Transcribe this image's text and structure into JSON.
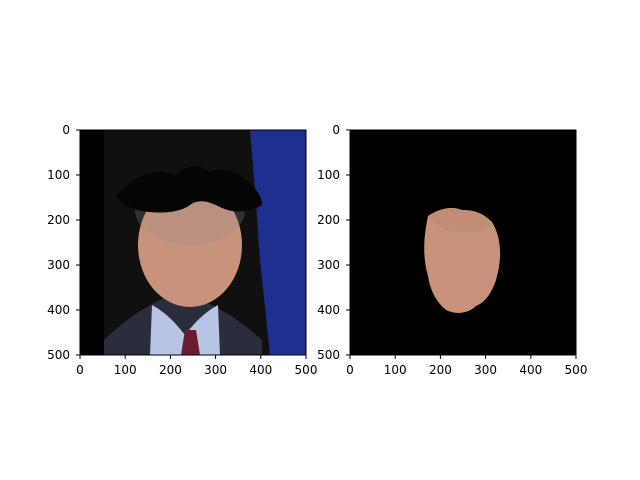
{
  "figure": {
    "panels": [
      {
        "name": "left-panel",
        "image_description_icon": "portrait-photo-with-black-mustache-overlay",
        "xticks": [
          "0",
          "100",
          "200",
          "300",
          "400",
          "500"
        ],
        "yticks": [
          "0",
          "100",
          "200",
          "300",
          "400",
          "500"
        ],
        "xlim": [
          0,
          500
        ],
        "ylim": [
          500,
          0
        ]
      },
      {
        "name": "right-panel",
        "image_description_icon": "isolated-face-crop-on-black",
        "xticks": [
          "0",
          "100",
          "200",
          "300",
          "400",
          "500"
        ],
        "yticks": [
          "0",
          "100",
          "200",
          "300",
          "400",
          "500"
        ],
        "xlim": [
          0,
          500
        ],
        "ylim": [
          500,
          0
        ]
      }
    ]
  },
  "colors": {
    "background": "#ffffff",
    "panel_bg_dark": "#0b0b0b",
    "right_panel_bg": "#000000",
    "flag_blue": "#1e2f8f",
    "skin": "#c9927a",
    "suit": "#2a2d3b",
    "shirt": "#b7c4e6",
    "tie": "#6a1b2e"
  }
}
